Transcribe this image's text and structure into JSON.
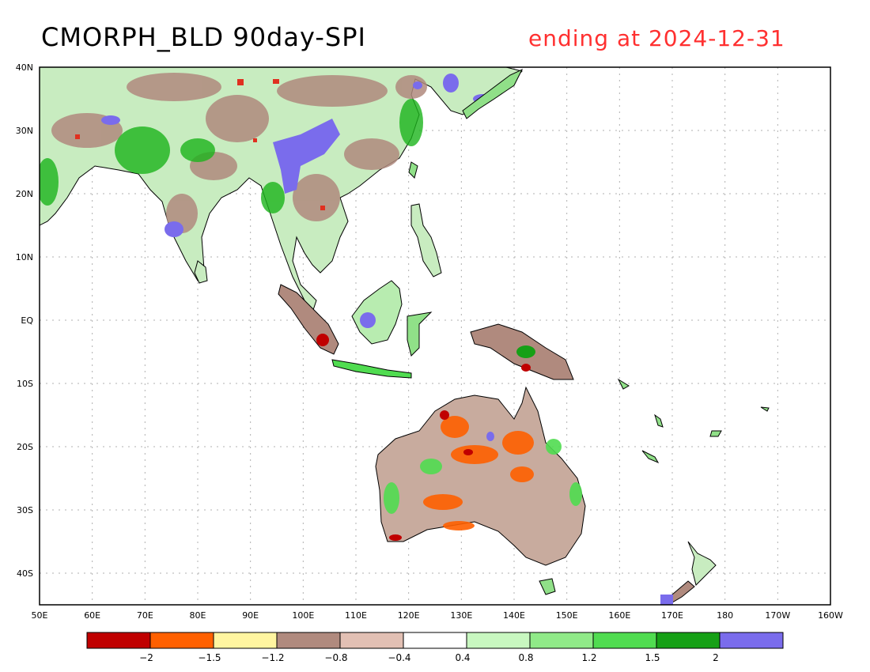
{
  "map": {
    "title": "CMORPH_BLD 90day-SPI",
    "subtitle": "ending at 2024-12-31",
    "lon_range": [
      50,
      200
    ],
    "lat_range": [
      -45,
      40
    ],
    "lon_labels": [
      "50E",
      "60E",
      "70E",
      "80E",
      "90E",
      "100E",
      "110E",
      "120E",
      "130E",
      "140E",
      "150E",
      "160E",
      "170E",
      "180",
      "170W",
      "160W"
    ],
    "lat_labels": [
      "40N",
      "30N",
      "20N",
      "10N",
      "EQ",
      "10S",
      "20S",
      "30S",
      "40S"
    ]
  },
  "legend": {
    "colors": [
      "#c00000",
      "#ff6000",
      "#fff5a0",
      "#b08a7e",
      "#e2c0b4",
      "#ffffff",
      "#c8f7c0",
      "#90ea88",
      "#50dc50",
      "#16a016",
      "#7a6cec"
    ],
    "labels": [
      "−2",
      "−1.5",
      "−1.2",
      "−0.8",
      "−0.4",
      "0.4",
      "0.8",
      "1.2",
      "1.5",
      "2"
    ]
  }
}
